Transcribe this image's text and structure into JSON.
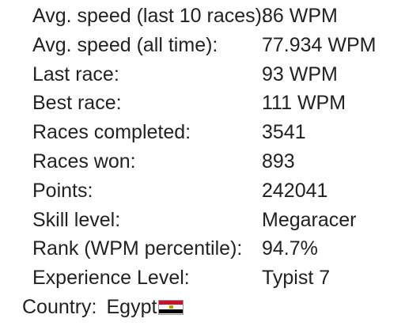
{
  "stats": [
    {
      "label": "Avg. speed (last 10 races):",
      "value": "86 WPM"
    },
    {
      "label": "Avg. speed (all time):",
      "value": "77.934 WPM"
    },
    {
      "label": "Last race:",
      "value": "93 WPM"
    },
    {
      "label": "Best race:",
      "value": "111 WPM"
    },
    {
      "label": "Races completed:",
      "value": "3541"
    },
    {
      "label": "Races won:",
      "value": "893"
    },
    {
      "label": "Points:",
      "value": "242041"
    },
    {
      "label": "Skill level:",
      "value": "Megaracer"
    },
    {
      "label": "Rank (WPM percentile):",
      "value": "94.7%"
    },
    {
      "label": "Experience Level:",
      "value": "Typist 7"
    }
  ],
  "country": {
    "label": "Country:",
    "value": "Egypt",
    "flag_icon": "egypt-flag-icon",
    "flag_colors": [
      "#ce1126",
      "#ffffff",
      "#000000"
    ]
  }
}
